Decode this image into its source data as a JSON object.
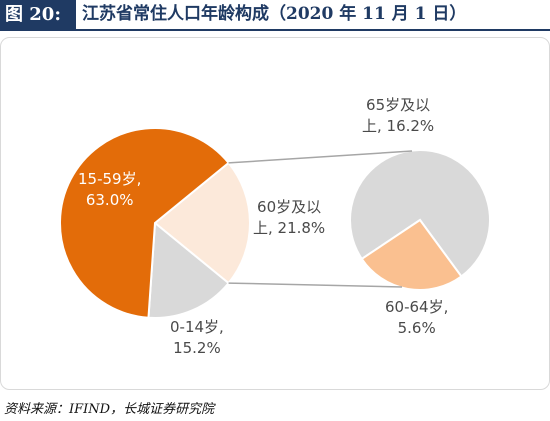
{
  "header": {
    "figure_tag": "图 20:",
    "title": "江苏省常住人口年龄构成（2020 年 11 月 1 日）"
  },
  "chart_data": {
    "type": "pie",
    "title": "江苏省常住人口年龄构成（2020 年 11 月 1 日）",
    "main_pie": {
      "slices": [
        {
          "label": "15-59岁",
          "value": 63.0,
          "display": "63.0%",
          "color": "#e36c09"
        },
        {
          "label": "60岁及以上",
          "value": 21.8,
          "display": "21.8%",
          "color": "#fce9da"
        },
        {
          "label": "0-14岁",
          "value": 15.2,
          "display": "15.2%",
          "color": "#d9d9d9"
        }
      ]
    },
    "sub_pie": {
      "of": "60岁及以上",
      "slices": [
        {
          "label": "65岁及以上",
          "value": 16.2,
          "display": "16.2%",
          "color": "#d9d9d9"
        },
        {
          "label": "60-64岁",
          "value": 5.6,
          "display": "5.6%",
          "color": "#fac090"
        }
      ]
    }
  },
  "labels": {
    "age_15_59": {
      "line1": "15-59岁,",
      "line2": "63.0%"
    },
    "age_60_plus": {
      "line1": "60岁及以",
      "line2": "上, 21.8%"
    },
    "age_0_14": {
      "line1": "0-14岁,",
      "line2": "15.2%"
    },
    "age_65_plus": {
      "line1": "65岁及以",
      "line2": "上, 16.2%"
    },
    "age_60_64": {
      "line1": "60-64岁,",
      "line2": "5.6%"
    }
  },
  "footer": {
    "source": "资料来源：IFIND，长城证券研究院"
  }
}
